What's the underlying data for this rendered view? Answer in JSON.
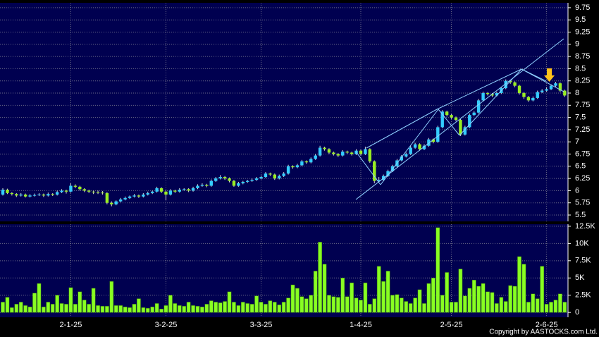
{
  "chart_data": {
    "type": "candlestick",
    "categories": [
      null,
      null,
      null,
      null,
      null,
      null,
      null,
      null,
      null,
      null,
      null,
      null,
      null,
      null,
      null,
      "2-1-25",
      null,
      null,
      null,
      null,
      null,
      null,
      null,
      null,
      null,
      null,
      null,
      null,
      null,
      null,
      null,
      null,
      null,
      null,
      null,
      null,
      "3-2-25",
      null,
      null,
      null,
      null,
      null,
      null,
      null,
      null,
      null,
      null,
      null,
      null,
      null,
      null,
      null,
      null,
      null,
      null,
      null,
      null,
      "3-3-25",
      null,
      null,
      null,
      null,
      null,
      null,
      null,
      null,
      null,
      null,
      null,
      null,
      null,
      null,
      null,
      null,
      null,
      null,
      null,
      null,
      null,
      "1-4-25",
      null,
      null,
      null,
      null,
      null,
      null,
      null,
      null,
      null,
      null,
      null,
      null,
      null,
      null,
      null,
      null,
      null,
      null,
      null,
      "2-5-25",
      null,
      null,
      null,
      null,
      null,
      null,
      null,
      null,
      null,
      null,
      null,
      null,
      null,
      null,
      null,
      null,
      null,
      null,
      null,
      null,
      "2-6-25",
      null,
      null,
      null,
      null
    ],
    "ohlc": [
      [
        5.92,
        6.05,
        5.9,
        6.02
      ],
      [
        6.02,
        6.04,
        5.93,
        5.95
      ],
      [
        5.95,
        5.97,
        5.9,
        5.93
      ],
      [
        5.93,
        5.95,
        5.87,
        5.9
      ],
      [
        5.9,
        5.95,
        5.88,
        5.92
      ],
      [
        5.92,
        5.94,
        5.86,
        5.88
      ],
      [
        5.88,
        5.93,
        5.86,
        5.9
      ],
      [
        5.9,
        5.94,
        5.88,
        5.91
      ],
      [
        5.91,
        5.95,
        5.89,
        5.92
      ],
      [
        5.92,
        5.94,
        5.87,
        5.9
      ],
      [
        5.9,
        5.96,
        5.88,
        5.93
      ],
      [
        5.93,
        5.95,
        5.89,
        5.92
      ],
      [
        5.92,
        6.0,
        5.9,
        5.97
      ],
      [
        5.97,
        6.03,
        5.95,
        6.0
      ],
      [
        6.0,
        6.02,
        5.94,
        5.98
      ],
      [
        5.98,
        6.15,
        5.96,
        6.1
      ],
      [
        6.1,
        6.13,
        6.05,
        6.08
      ],
      [
        6.08,
        6.1,
        6.0,
        6.03
      ],
      [
        6.03,
        6.05,
        5.97,
        6.0
      ],
      [
        6.0,
        6.02,
        5.95,
        5.98
      ],
      [
        5.98,
        6.0,
        5.93,
        5.97
      ],
      [
        5.97,
        6.0,
        5.93,
        5.96
      ],
      [
        5.96,
        5.99,
        5.92,
        5.95
      ],
      [
        5.95,
        5.97,
        5.72,
        5.75
      ],
      [
        5.75,
        5.78,
        5.68,
        5.72
      ],
      [
        5.72,
        5.8,
        5.7,
        5.78
      ],
      [
        5.78,
        5.85,
        5.76,
        5.82
      ],
      [
        5.82,
        5.88,
        5.8,
        5.85
      ],
      [
        5.85,
        5.9,
        5.83,
        5.88
      ],
      [
        5.88,
        5.93,
        5.86,
        5.9
      ],
      [
        5.9,
        5.92,
        5.85,
        5.88
      ],
      [
        5.88,
        5.95,
        5.86,
        5.92
      ],
      [
        5.92,
        5.98,
        5.9,
        5.95
      ],
      [
        5.95,
        6.0,
        5.93,
        5.98
      ],
      [
        5.98,
        6.08,
        5.96,
        6.05
      ],
      [
        6.05,
        6.07,
        5.95,
        5.98
      ],
      [
        5.98,
        6.0,
        5.8,
        5.92
      ],
      [
        5.92,
        6.03,
        5.9,
        6.0
      ],
      [
        6.0,
        6.02,
        5.95,
        5.98
      ],
      [
        5.98,
        6.05,
        5.96,
        6.02
      ],
      [
        6.02,
        6.05,
        6.0,
        6.03
      ],
      [
        6.03,
        6.05,
        5.97,
        6.0
      ],
      [
        6.0,
        6.08,
        5.98,
        6.05
      ],
      [
        6.05,
        6.13,
        6.03,
        6.1
      ],
      [
        6.1,
        6.15,
        6.08,
        6.12
      ],
      [
        6.12,
        6.14,
        6.07,
        6.1
      ],
      [
        6.1,
        6.23,
        6.08,
        6.2
      ],
      [
        6.2,
        6.28,
        6.18,
        6.25
      ],
      [
        6.25,
        6.32,
        6.23,
        6.28
      ],
      [
        6.28,
        6.3,
        6.22,
        6.25
      ],
      [
        6.25,
        6.27,
        6.17,
        6.2
      ],
      [
        6.2,
        6.22,
        6.08,
        6.1
      ],
      [
        6.1,
        6.18,
        6.08,
        6.15
      ],
      [
        6.15,
        6.2,
        6.13,
        6.18
      ],
      [
        6.18,
        6.22,
        6.16,
        6.2
      ],
      [
        6.2,
        6.25,
        6.18,
        6.22
      ],
      [
        6.22,
        6.28,
        6.2,
        6.25
      ],
      [
        6.25,
        6.31,
        6.23,
        6.28
      ],
      [
        6.28,
        6.38,
        6.26,
        6.35
      ],
      [
        6.35,
        6.37,
        6.3,
        6.33
      ],
      [
        6.33,
        6.35,
        6.22,
        6.25
      ],
      [
        6.25,
        6.33,
        6.23,
        6.3
      ],
      [
        6.3,
        6.38,
        6.28,
        6.35
      ],
      [
        6.35,
        6.53,
        6.33,
        6.5
      ],
      [
        6.5,
        6.52,
        6.45,
        6.48
      ],
      [
        6.48,
        6.55,
        6.46,
        6.52
      ],
      [
        6.52,
        6.63,
        6.5,
        6.6
      ],
      [
        6.6,
        6.62,
        6.55,
        6.58
      ],
      [
        6.58,
        6.68,
        6.56,
        6.65
      ],
      [
        6.65,
        6.75,
        6.63,
        6.72
      ],
      [
        6.72,
        6.92,
        6.7,
        6.88
      ],
      [
        6.88,
        6.9,
        6.82,
        6.85
      ],
      [
        6.85,
        6.87,
        6.75,
        6.78
      ],
      [
        6.78,
        6.8,
        6.72,
        6.75
      ],
      [
        6.75,
        6.77,
        6.69,
        6.72
      ],
      [
        6.72,
        6.83,
        6.7,
        6.8
      ],
      [
        6.8,
        6.82,
        6.75,
        6.78
      ],
      [
        6.78,
        6.8,
        6.72,
        6.75
      ],
      [
        6.75,
        6.85,
        6.73,
        6.82
      ],
      [
        6.82,
        6.84,
        6.72,
        6.75
      ],
      [
        6.75,
        6.9,
        6.73,
        6.85
      ],
      [
        6.85,
        6.87,
        6.57,
        6.6
      ],
      [
        6.6,
        6.62,
        6.15,
        6.2
      ],
      [
        6.2,
        6.28,
        6.18,
        6.22
      ],
      [
        6.22,
        6.33,
        6.2,
        6.3
      ],
      [
        6.3,
        6.43,
        6.28,
        6.4
      ],
      [
        6.4,
        6.53,
        6.38,
        6.5
      ],
      [
        6.5,
        6.65,
        6.48,
        6.62
      ],
      [
        6.62,
        6.73,
        6.6,
        6.7
      ],
      [
        6.7,
        6.78,
        6.68,
        6.75
      ],
      [
        6.75,
        6.92,
        6.73,
        6.88
      ],
      [
        6.88,
        6.98,
        6.86,
        6.95
      ],
      [
        6.95,
        6.97,
        6.82,
        6.85
      ],
      [
        6.85,
        6.95,
        6.83,
        6.92
      ],
      [
        6.92,
        7.08,
        6.9,
        7.05
      ],
      [
        7.05,
        7.07,
        6.97,
        7.0
      ],
      [
        7.0,
        7.33,
        6.98,
        7.3
      ],
      [
        7.3,
        7.65,
        7.28,
        7.62
      ],
      [
        7.62,
        7.64,
        7.52,
        7.55
      ],
      [
        7.55,
        7.57,
        7.47,
        7.5
      ],
      [
        7.5,
        7.52,
        7.42,
        7.45
      ],
      [
        7.45,
        7.47,
        7.12,
        7.15
      ],
      [
        7.15,
        7.33,
        7.13,
        7.3
      ],
      [
        7.3,
        7.58,
        7.28,
        7.55
      ],
      [
        7.55,
        7.63,
        7.53,
        7.6
      ],
      [
        7.6,
        7.88,
        7.58,
        7.85
      ],
      [
        7.85,
        8.03,
        7.83,
        8.0
      ],
      [
        8.0,
        8.02,
        7.95,
        7.98
      ],
      [
        7.98,
        8.0,
        7.92,
        7.95
      ],
      [
        7.95,
        8.03,
        7.93,
        8.0
      ],
      [
        8.0,
        8.13,
        7.98,
        8.1
      ],
      [
        8.1,
        8.28,
        8.08,
        8.25
      ],
      [
        8.25,
        8.27,
        8.19,
        8.22
      ],
      [
        8.22,
        8.24,
        8.12,
        8.15
      ],
      [
        8.15,
        8.17,
        7.97,
        8.0
      ],
      [
        8.0,
        8.02,
        7.88,
        7.92
      ],
      [
        7.92,
        7.94,
        7.82,
        7.85
      ],
      [
        7.85,
        7.93,
        7.83,
        7.9
      ],
      [
        7.9,
        8.05,
        7.88,
        8.02
      ],
      [
        8.02,
        8.08,
        8.0,
        8.05
      ],
      [
        8.05,
        8.12,
        8.03,
        8.08
      ],
      [
        8.08,
        8.18,
        8.06,
        8.15
      ],
      [
        8.15,
        8.23,
        8.13,
        8.2
      ],
      [
        8.2,
        8.22,
        8.02,
        8.05
      ],
      [
        8.05,
        8.07,
        7.92,
        7.95
      ]
    ],
    "up_color": "#33ccff",
    "down_color": "#99ee22",
    "ylim": [
      5.37,
      9.85
    ],
    "yticks": [
      5.5,
      5.75,
      6,
      6.25,
      6.5,
      6.75,
      7,
      7.25,
      7.5,
      7.75,
      8,
      8.25,
      8.5,
      8.75,
      9,
      9.25,
      9.5,
      9.75
    ],
    "grid": true,
    "volume": {
      "type": "bar",
      "color": "#88ff22",
      "values": [
        1500,
        2200,
        700,
        1200,
        1500,
        1000,
        800,
        2800,
        4200,
        800,
        1500,
        1200,
        2500,
        1300,
        1200,
        3600,
        1200,
        3000,
        1800,
        1200,
        3500,
        1000,
        900,
        900,
        4500,
        1000,
        1000,
        800,
        700,
        1200,
        2000,
        700,
        600,
        800,
        1300,
        500,
        1000,
        2500,
        1300,
        1000,
        900,
        1500,
        1000,
        900,
        800,
        1200,
        1700,
        1500,
        1400,
        1600,
        3000,
        1500,
        1000,
        1500,
        1300,
        1200,
        2400,
        1500,
        1200,
        1700,
        1500,
        1100,
        1500,
        2100,
        4000,
        3500,
        2300,
        2000,
        2500,
        6000,
        10200,
        7000,
        2500,
        2300,
        2200,
        5000,
        2300,
        4300,
        2100,
        1800,
        4300,
        1200,
        2000,
        6700,
        4500,
        6000,
        2500,
        2600,
        2100,
        1600,
        1300,
        2100,
        3300,
        1300,
        4200,
        5000,
        12300,
        2500,
        5800,
        1500,
        1500,
        6300,
        2400,
        3500,
        4700,
        3800,
        4200,
        3000,
        2900,
        1300,
        2200,
        1600,
        3900,
        3800,
        8100,
        7000,
        1500,
        2700,
        2000,
        6700,
        1200,
        1500,
        1800,
        2700,
        1500
      ],
      "ylim": [
        -700,
        12800
      ],
      "yticks": [
        0,
        {
          "value": 2500,
          "label": "2.5K"
        },
        {
          "value": 5000,
          "label": "5K"
        },
        {
          "value": 7500,
          "label": "7.5K"
        },
        {
          "value": 10000,
          "label": "10K"
        },
        {
          "value": 12500,
          "label": "12.5K"
        }
      ]
    }
  },
  "copyright": "Copyright by AASTOCKS.com Ltd."
}
